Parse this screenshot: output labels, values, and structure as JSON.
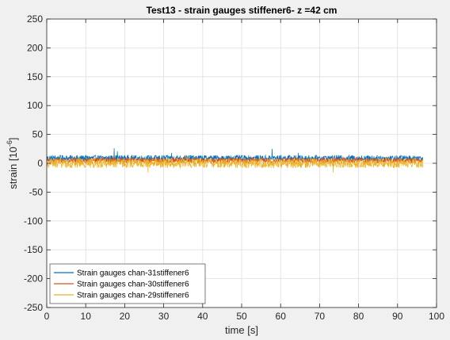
{
  "chart_data": {
    "type": "line",
    "title": "Test13 - strain gauges stiffener6- z =42 cm",
    "xlabel": "time [s]",
    "ylabel": "strain [10",
    "ylabel_exponent": "-6",
    "ylabel_suffix": "]",
    "xlim": [
      0,
      100
    ],
    "ylim": [
      -250,
      250
    ],
    "xticks": [
      "0",
      "10",
      "20",
      "30",
      "40",
      "50",
      "60",
      "70",
      "80",
      "90",
      "100"
    ],
    "yticks": [
      "250",
      "200",
      "150",
      "100",
      "50",
      "0",
      "-50",
      "-100",
      "-150",
      "-200",
      "-250"
    ],
    "grid": true,
    "legend_position": "bottom-left",
    "series": [
      {
        "name": "Strain gauges chan-31stiffener6",
        "color": "#0072BD",
        "x_range": [
          0,
          96.5
        ],
        "mean": 9,
        "noise_amplitude": 5,
        "spikes": [
          [
            17.3,
            26
          ],
          [
            18.1,
            21
          ],
          [
            32.0,
            18
          ],
          [
            57.8,
            25
          ],
          [
            64.5,
            18
          ]
        ]
      },
      {
        "name": "Strain gauges chan-30stiffener6",
        "color": "#D95319",
        "x_range": [
          0,
          96.5
        ],
        "mean": 5,
        "noise_amplitude": 5,
        "spikes": [
          [
            17.2,
            14
          ],
          [
            35.5,
            14
          ]
        ]
      },
      {
        "name": "Strain gauges chan-29stiffener6",
        "color": "#EDB120",
        "x_range": [
          0,
          96.5
        ],
        "mean": 0,
        "noise_amplitude": 8,
        "spikes": [
          [
            8.0,
            12
          ],
          [
            26.0,
            -16
          ],
          [
            36.0,
            12
          ],
          [
            73.5,
            -16
          ],
          [
            87.0,
            11
          ]
        ]
      }
    ]
  }
}
